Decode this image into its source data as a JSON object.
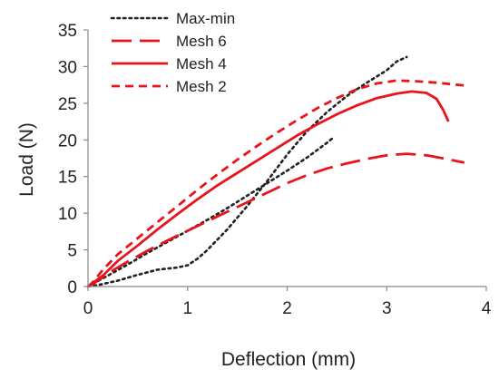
{
  "chart_data": {
    "type": "line",
    "title": "",
    "xlabel": "Deflection (mm)",
    "ylabel": "Load (N)",
    "xlim": [
      0,
      4
    ],
    "ylim": [
      0,
      35
    ],
    "xticks": [
      0,
      1,
      2,
      3,
      4
    ],
    "yticks": [
      0,
      5,
      10,
      15,
      20,
      25,
      30,
      35
    ],
    "grid": false,
    "legend_position": "top-left",
    "series": [
      {
        "name": "Max-min",
        "color": "#222222",
        "dash": "dotted",
        "lines": [
          {
            "x": [
              0,
              0.1,
              0.3,
              0.5,
              0.7,
              0.9,
              1.0,
              1.1,
              1.2,
              1.4,
              1.6,
              1.8,
              2.0,
              2.2,
              2.4,
              2.6,
              2.8,
              3.0,
              3.1,
              3.2
            ],
            "y": [
              0,
              0.2,
              0.8,
              1.6,
              2.3,
              2.6,
              2.9,
              3.8,
              5.0,
              7.8,
              11.0,
              14.4,
              18.0,
              21.2,
              23.8,
              26.0,
              27.8,
              29.5,
              30.7,
              31.3
            ]
          },
          {
            "x": [
              0,
              0.2,
              0.4,
              0.6,
              0.8,
              1.0,
              1.2,
              1.4,
              1.6,
              1.8,
              2.0,
              2.2,
              2.4,
              2.47
            ],
            "y": [
              0,
              1.5,
              3.0,
              4.6,
              6.1,
              7.6,
              9.1,
              10.7,
              12.4,
              14.1,
              15.8,
              17.6,
              19.6,
              20.4
            ]
          }
        ]
      },
      {
        "name": "Mesh 6",
        "color": "#e8141b",
        "dash": "long-dash",
        "lines": [
          {
            "x": [
              0,
              0.1,
              0.2,
              0.4,
              0.6,
              0.8,
              1.0,
              1.2,
              1.4,
              1.6,
              1.8,
              2.0,
              2.2,
              2.4,
              2.6,
              2.8,
              3.0,
              3.2,
              3.4,
              3.6,
              3.78
            ],
            "y": [
              0,
              0.8,
              1.8,
              3.4,
              4.9,
              6.3,
              7.6,
              8.9,
              10.2,
              11.5,
              12.8,
              14.1,
              15.2,
              16.1,
              16.8,
              17.4,
              17.9,
              18.1,
              17.9,
              17.4,
              16.9
            ]
          }
        ]
      },
      {
        "name": "Mesh 4",
        "color": "#e8141b",
        "dash": "solid",
        "lines": [
          {
            "x": [
              0,
              0.05,
              0.15,
              0.3,
              0.5,
              0.7,
              0.9,
              1.1,
              1.3,
              1.5,
              1.7,
              1.9,
              2.1,
              2.3,
              2.5,
              2.7,
              2.9,
              3.1,
              3.25,
              3.4,
              3.5,
              3.57,
              3.62
            ],
            "y": [
              0,
              0.5,
              1.5,
              3.5,
              5.6,
              7.8,
              9.9,
              11.9,
              13.8,
              15.5,
              17.2,
              18.9,
              20.6,
              22.1,
              23.5,
              24.7,
              25.7,
              26.3,
              26.6,
              26.4,
              25.6,
              24.0,
              22.5
            ]
          }
        ]
      },
      {
        "name": "Mesh 2",
        "color": "#e8141b",
        "dash": "short-dash",
        "lines": [
          {
            "x": [
              0,
              0.05,
              0.15,
              0.3,
              0.5,
              0.7,
              0.9,
              1.1,
              1.3,
              1.5,
              1.7,
              1.9,
              2.1,
              2.3,
              2.5,
              2.7,
              2.9,
              3.1,
              3.3,
              3.5,
              3.8
            ],
            "y": [
              0,
              0.6,
              2.3,
              4.4,
              6.6,
              8.8,
              11.0,
              13.2,
              15.3,
              17.3,
              19.2,
              21.0,
              22.7,
              24.3,
              25.7,
              26.9,
              27.7,
              28.1,
              28.0,
              27.8,
              27.4
            ]
          }
        ]
      }
    ]
  }
}
